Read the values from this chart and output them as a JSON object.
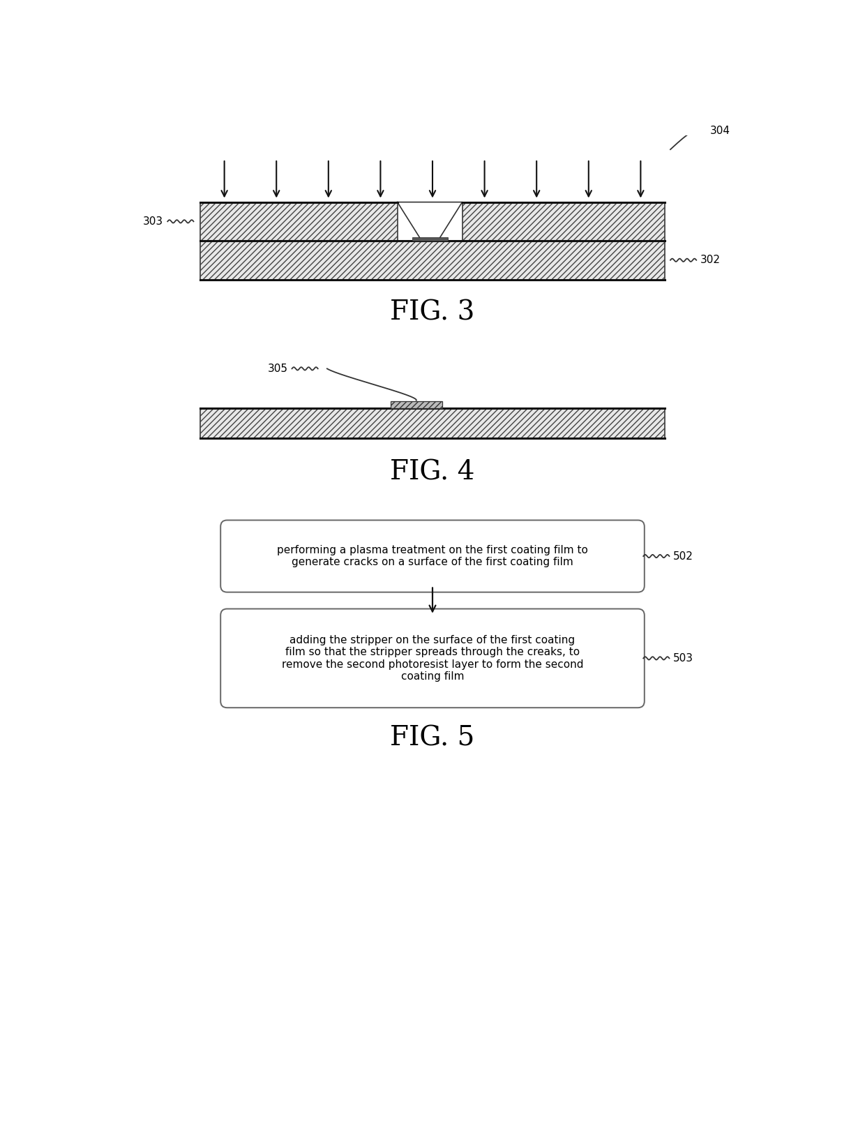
{
  "bg_color": "#ffffff",
  "fig_width": 12.4,
  "fig_height": 16.18,
  "fig3_label": "FIG. 3",
  "fig4_label": "FIG. 4",
  "fig5_label": "FIG. 5",
  "label_302": "302",
  "label_303": "303",
  "label_304": "304",
  "label_305": "305",
  "label_502": "502",
  "label_503": "503",
  "box502_text": "performing a plasma treatment on the first coating film to\ngenerate cracks on a surface of the first coating film",
  "box503_text": "adding the stripper on the surface of the first coating\nfilm so that the stripper spreads through the creaks, to\nremove the second photoresist layer to form the second\ncoating film",
  "text_color": "#000000"
}
